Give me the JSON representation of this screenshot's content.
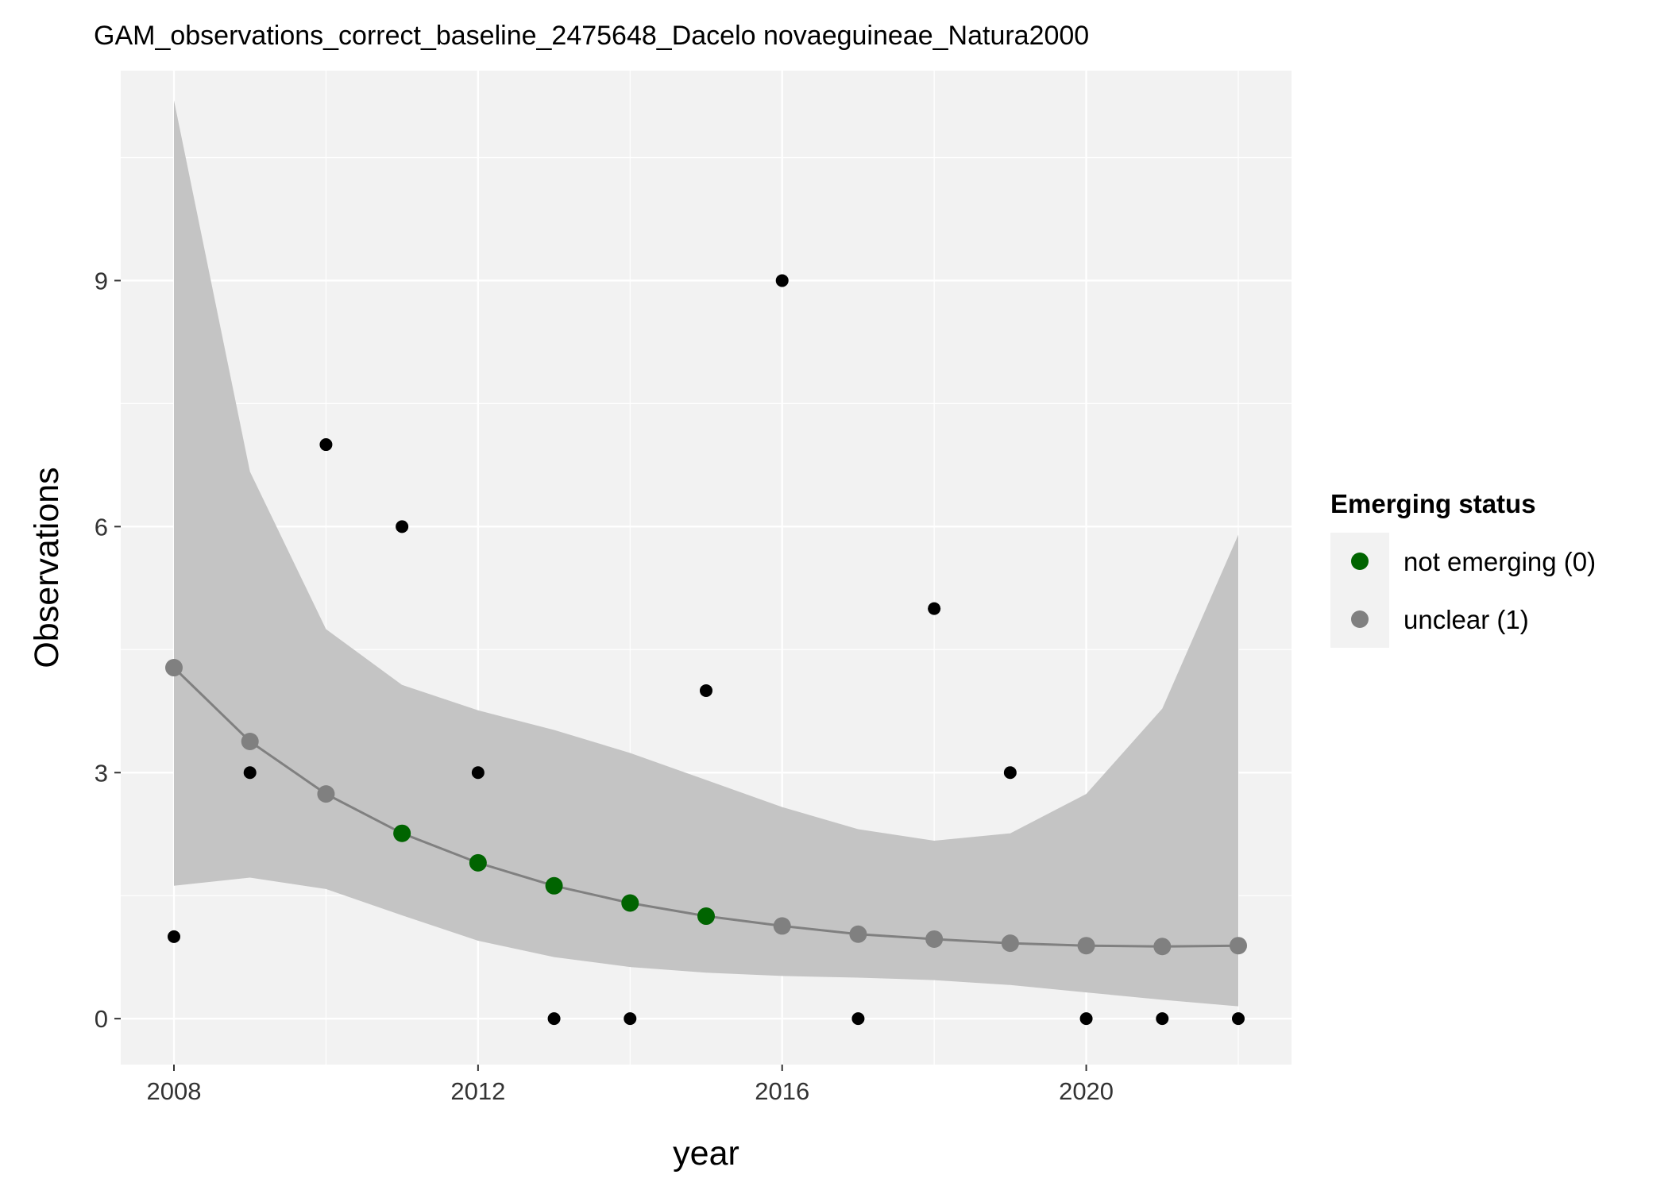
{
  "chart_data": {
    "type": "scatter",
    "title": "GAM_observations_correct_baseline_2475648_Dacelo novaeguineae_Natura2000",
    "xlabel": "year",
    "ylabel": "Observations",
    "xlim": [
      2007.3,
      2022.7
    ],
    "ylim": [
      -0.56,
      11.56
    ],
    "x_ticks": [
      2008,
      2012,
      2016,
      2020
    ],
    "y_ticks": [
      0,
      3,
      6,
      9
    ],
    "grid": true,
    "legend_position": "right",
    "colors": {
      "panel_background": "#f2f2f2",
      "ribbon": "#c4c4c4",
      "fit_line": "#808080",
      "observed_points": "#000000",
      "not_emerging": "#006400",
      "unclear": "#808080"
    },
    "legend": {
      "title": "Emerging status",
      "items": [
        {
          "label": "not emerging (0)",
          "color": "#006400"
        },
        {
          "label": "unclear (1)",
          "color": "#808080"
        }
      ]
    },
    "observed": {
      "x": [
        2008,
        2009,
        2010,
        2011,
        2012,
        2013,
        2014,
        2015,
        2016,
        2017,
        2018,
        2019,
        2020,
        2021,
        2022
      ],
      "y": [
        1,
        3,
        7,
        6,
        3,
        0,
        0,
        4,
        9,
        0,
        5,
        3,
        0,
        0,
        0
      ]
    },
    "fitted": {
      "x": [
        2008,
        2009,
        2010,
        2011,
        2012,
        2013,
        2014,
        2015,
        2016,
        2017,
        2018,
        2019,
        2020,
        2021,
        2022
      ],
      "y": [
        4.28,
        3.38,
        2.74,
        2.26,
        1.9,
        1.62,
        1.41,
        1.25,
        1.13,
        1.03,
        0.97,
        0.92,
        0.89,
        0.88,
        0.89
      ],
      "lower": [
        1.62,
        1.72,
        1.58,
        1.26,
        0.95,
        0.75,
        0.63,
        0.56,
        0.52,
        0.5,
        0.47,
        0.41,
        0.32,
        0.23,
        0.15
      ],
      "upper": [
        11.2,
        6.67,
        4.75,
        4.07,
        3.76,
        3.52,
        3.24,
        2.91,
        2.58,
        2.31,
        2.17,
        2.26,
        2.74,
        3.78,
        5.9
      ],
      "status": [
        "unclear",
        "unclear",
        "unclear",
        "not_emerging",
        "not_emerging",
        "not_emerging",
        "not_emerging",
        "not_emerging",
        "unclear",
        "unclear",
        "unclear",
        "unclear",
        "unclear",
        "unclear",
        "unclear"
      ]
    }
  }
}
